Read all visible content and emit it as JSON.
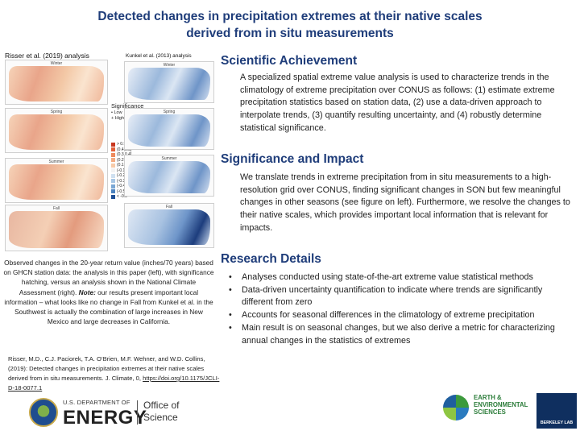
{
  "title_line1": "Detected changes in precipitation extremes at their native scales",
  "title_line2": "derived from in situ measurements",
  "figure": {
    "left_label": "Risser et al. (2019) analysis",
    "right_label": "Kunkel et al. (2013) analysis",
    "seasons": [
      "Winter",
      "Spring",
      "Summer",
      "Fall"
    ],
    "significance_title": "Significance",
    "significance_items": [
      "• Low",
      "+ High"
    ],
    "scale": [
      {
        "label": "> 0.5",
        "color": "#c8371f"
      },
      {
        "label": "(0.4,0.5]",
        "color": "#e2603a"
      },
      {
        "label": "(0.3,0.4]",
        "color": "#ee8a5c"
      },
      {
        "label": "(0.2,0.3]",
        "color": "#f3ab82"
      },
      {
        "label": "(0.1,0.2]",
        "color": "#f7cba9"
      },
      {
        "label": "(-0.1,0.1]",
        "color": "#f3f3f3"
      },
      {
        "label": "(-0.2,-0.1]",
        "color": "#cfe0f0"
      },
      {
        "label": "(-0.3,-0.2]",
        "color": "#a7c6e4"
      },
      {
        "label": "(-0.4,-0.3]",
        "color": "#7aa7d4"
      },
      {
        "label": "(-0.5,-0.4]",
        "color": "#4b82bf"
      },
      {
        "label": "< -0.5",
        "color": "#1f4f95"
      }
    ]
  },
  "caption": {
    "part1": "Observed changes in the 20-year return value (inches/70 years) based on GHCN station data: the analysis in this paper (left), with significance hatching, versus an analysis shown in the National Climate Assessment (right).",
    "note_label": "Note:",
    "part2": " our results present important local information – what looks like no change in Fall from Kunkel et al. in the Southwest is actually the combination of large increases in New Mexico and large decreases in California."
  },
  "citation": {
    "text": "Risser, M.D., C.J. Paciorek, T.A. O’Brien, M.F. Wehner, and W.D. Collins, (2019): Detected changes in precipitation extremes at their native scales derived from in situ measurements. J. Climate, 0, ",
    "doi": "https://doi.org/10.1175/JCLI-D-18-0077.1"
  },
  "sections": {
    "achievement": {
      "heading": "Scientific Achievement",
      "body": "A specialized spatial extreme value analysis is used to characterize trends in the climatology of extreme precipitation over CONUS as follows: (1) estimate extreme precipitation statistics based on station data, (2) use a data-driven approach to interpolate trends, (3) quantify resulting uncertainty, and (4) robustly determine statistical significance."
    },
    "impact": {
      "heading": "Significance and Impact",
      "body": "We translate trends in extreme precipitation from in situ measurements to a high-resolution grid over CONUS, finding significant changes in SON but few meaningful changes in other seasons (see figure on left). Furthermore, we resolve the changes to their native scales, which provides important local information that is relevant for impacts."
    },
    "details": {
      "heading": "Research Details",
      "bullets": [
        "Analyses conducted using state-of-the-art extreme value statistical methods",
        "Data-driven uncertainty quantification to indicate where trends are significantly different from zero",
        "Accounts for seasonal differences in the climatology of extreme precipitation",
        "Main result is on seasonal changes, but we also derive a metric for characterizing annual changes in the statistics of extremes"
      ]
    }
  },
  "footer": {
    "doe_small": "U.S. DEPARTMENT OF",
    "doe_big": "ENERGY",
    "office_line1": "Office of",
    "office_line2": "Science",
    "ees_lines": [
      "EARTH &",
      "ENVIRONMENTAL",
      "SCIENCES"
    ],
    "berkeley": "BERKELEY LAB"
  }
}
